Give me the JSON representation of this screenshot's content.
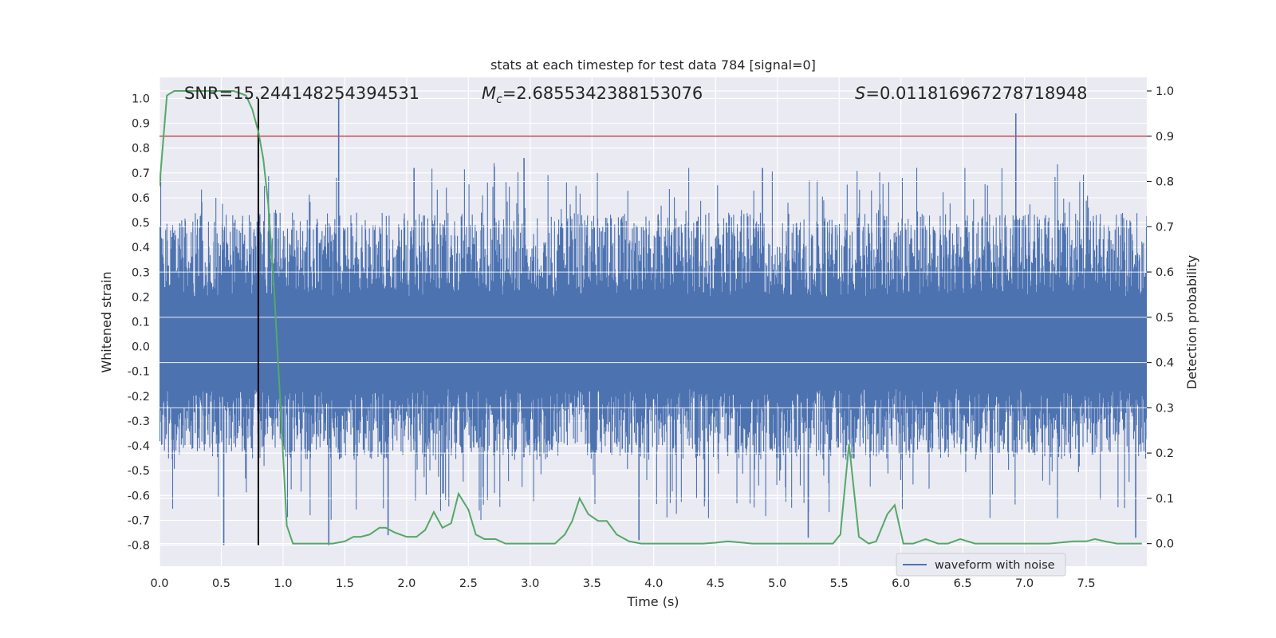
{
  "chart_data": {
    "type": "line",
    "title": "stats at each timestep for test data 784 [signal=0]",
    "xlabel": "Time (s)",
    "ylabel": "Whitened strain",
    "y2label": "Detection probability",
    "xlim": [
      0.0,
      7.99
    ],
    "ylim": [
      -0.885,
      1.085
    ],
    "y2lim": [
      -0.05,
      1.03
    ],
    "x_ticks": [
      "0.0",
      "0.5",
      "1.0",
      "1.5",
      "2.0",
      "2.5",
      "3.0",
      "3.5",
      "4.0",
      "4.5",
      "5.0",
      "5.5",
      "6.0",
      "6.5",
      "7.0",
      "7.5"
    ],
    "y_ticks": [
      "1.0",
      "0.9",
      "0.8",
      "0.7",
      "0.6",
      "0.5",
      "0.4",
      "0.3",
      "0.2",
      "0.1",
      "0.0",
      "-0.1",
      "-0.2",
      "-0.3",
      "-0.4",
      "-0.5",
      "-0.6",
      "-0.7",
      "-0.8"
    ],
    "y2_ticks": [
      "1.0",
      "0.9",
      "0.8",
      "0.7",
      "0.6",
      "0.5",
      "0.4",
      "0.3",
      "0.2",
      "0.1",
      "0.0"
    ],
    "grid": true,
    "annotations": {
      "snr": "SNR=15.244148254394531",
      "mc_symbol": "M",
      "mc_subscript": "c",
      "mc_value": "=2.6855342388153076",
      "s_symbol": "S",
      "s_value": "=0.011816967278718948"
    },
    "legend": {
      "entries": [
        "waveform with noise"
      ],
      "position": "lower-right"
    },
    "series": [
      {
        "name": "waveform with noise",
        "axis": "left",
        "color": "#4c72b0",
        "style": "dense noise",
        "envelope_typical": [
          -0.38,
          0.45
        ],
        "spikes": [
          {
            "x": 0.52,
            "y": -0.8
          },
          {
            "x": 1.37,
            "y": -0.8
          },
          {
            "x": 1.45,
            "y": 1.0
          },
          {
            "x": 1.85,
            "y": -0.76
          },
          {
            "x": 2.06,
            "y": 0.72
          },
          {
            "x": 2.95,
            "y": 0.76
          },
          {
            "x": 3.88,
            "y": -0.78
          },
          {
            "x": 4.88,
            "y": 0.72
          },
          {
            "x": 5.25,
            "y": -0.77
          },
          {
            "x": 6.93,
            "y": 0.94
          },
          {
            "x": 7.9,
            "y": -0.77
          }
        ]
      },
      {
        "axis": "right",
        "color": "#55a868",
        "x": [
          0.0,
          0.06,
          0.12,
          0.2,
          0.3,
          0.4,
          0.5,
          0.6,
          0.7,
          0.75,
          0.8,
          0.84,
          0.88,
          0.93,
          0.98,
          1.03,
          1.08,
          1.13,
          1.2,
          1.3,
          1.4,
          1.5,
          1.57,
          1.63,
          1.7,
          1.78,
          1.83,
          1.9,
          2.0,
          2.08,
          2.15,
          2.22,
          2.29,
          2.36,
          2.42,
          2.5,
          2.56,
          2.63,
          2.72,
          2.8,
          2.9,
          3.0,
          3.05,
          3.12,
          3.2,
          3.28,
          3.34,
          3.4,
          3.47,
          3.55,
          3.62,
          3.7,
          3.8,
          3.9,
          4.0,
          4.1,
          4.25,
          4.4,
          4.5,
          4.6,
          4.8,
          5.0,
          5.2,
          5.4,
          5.45,
          5.51,
          5.58,
          5.66,
          5.74,
          5.8,
          5.89,
          5.95,
          6.02,
          6.1,
          6.2,
          6.3,
          6.38,
          6.48,
          6.6,
          6.8,
          7.0,
          7.2,
          7.4,
          7.5,
          7.57,
          7.65,
          7.75,
          7.85,
          7.95
        ],
        "y": [
          0.79,
          0.99,
          1.0,
          1.0,
          1.0,
          1.0,
          1.0,
          1.0,
          0.99,
          0.96,
          0.91,
          0.85,
          0.75,
          0.55,
          0.3,
          0.04,
          0.0,
          0.0,
          0.0,
          0.0,
          0.0,
          0.005,
          0.015,
          0.015,
          0.02,
          0.035,
          0.035,
          0.025,
          0.015,
          0.015,
          0.03,
          0.07,
          0.035,
          0.045,
          0.11,
          0.075,
          0.02,
          0.01,
          0.01,
          0.0,
          0.0,
          0.0,
          0.0,
          0.0,
          0.0,
          0.02,
          0.05,
          0.1,
          0.065,
          0.05,
          0.05,
          0.02,
          0.005,
          0.0,
          0.0,
          0.0,
          0.0,
          0.0,
          0.002,
          0.005,
          0.0,
          0.0,
          0.0,
          0.0,
          0.0,
          0.02,
          0.22,
          0.015,
          0.0,
          0.005,
          0.065,
          0.085,
          0.0,
          0.0,
          0.01,
          0.0,
          0.0,
          0.01,
          0.0,
          0.0,
          0.0,
          0.0,
          0.005,
          0.005,
          0.01,
          0.005,
          0.0,
          0.0,
          0.0
        ]
      }
    ],
    "reference_lines": [
      {
        "type": "horizontal",
        "axis": "right",
        "y": 0.9,
        "color": "#c44e52"
      },
      {
        "type": "vertical",
        "x": 0.8,
        "y_range": [
          -0.8,
          1.0
        ],
        "color": "#000000"
      }
    ]
  }
}
